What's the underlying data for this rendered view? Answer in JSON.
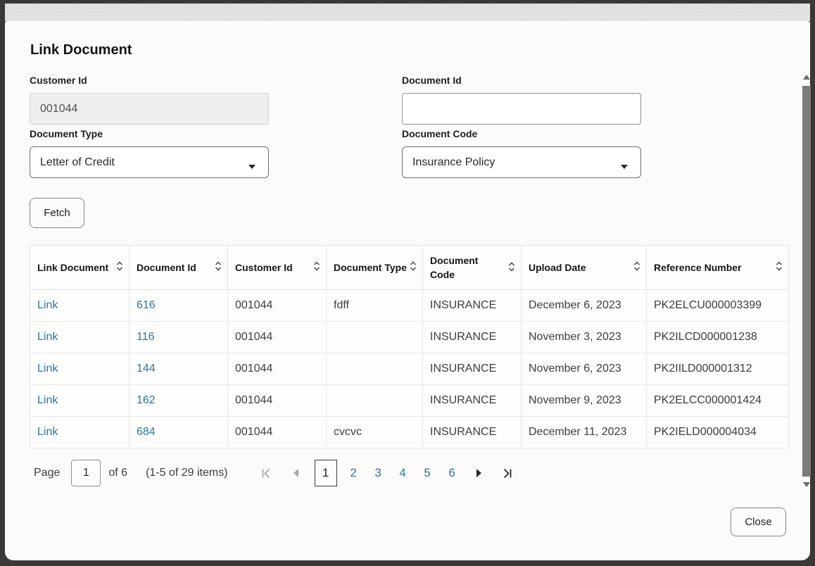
{
  "modal": {
    "title": "Link Document",
    "fetch_button": "Fetch",
    "close_button": "Close"
  },
  "form": {
    "customer_id": {
      "label": "Customer Id",
      "value": "001044"
    },
    "document_id": {
      "label": "Document Id",
      "value": ""
    },
    "document_type": {
      "label": "Document Type",
      "selected": "Letter of Credit"
    },
    "document_code": {
      "label": "Document Code",
      "selected": "Insurance Policy"
    }
  },
  "table": {
    "columns": [
      {
        "label": "Link Document"
      },
      {
        "label": "Document Id"
      },
      {
        "label": "Customer Id"
      },
      {
        "label": "Document Type"
      },
      {
        "label": "Document Code"
      },
      {
        "label": "Upload Date"
      },
      {
        "label": "Reference Number"
      }
    ],
    "rows": [
      [
        "Link",
        "616",
        "001044",
        "fdff",
        "INSURANCE",
        "December 6, 2023",
        "PK2ELCU000003399"
      ],
      [
        "Link",
        "116",
        "001044",
        "",
        "INSURANCE",
        "November 3, 2023",
        "PK2ILCD000001238"
      ],
      [
        "Link",
        "144",
        "001044",
        "",
        "INSURANCE",
        "November 6, 2023",
        "PK2IILD000001312"
      ],
      [
        "Link",
        "162",
        "001044",
        "",
        "INSURANCE",
        "November 9, 2023",
        "PK2ELCC000001424"
      ],
      [
        "Link",
        "684",
        "001044",
        "cvcvc",
        "INSURANCE",
        "December 11, 2023",
        "PK2IELD000004034"
      ]
    ]
  },
  "pagination": {
    "page_label": "Page",
    "page_input_value": "1",
    "of_label": "of 6",
    "items_label": "(1-5 of 29 items)",
    "current_page": "1",
    "pages": [
      "1",
      "2",
      "3",
      "4",
      "5",
      "6"
    ]
  },
  "colors": {
    "link": "#2579a0",
    "icon_enabled": "#2b2926",
    "icon_disabled": "#aaa7a4"
  }
}
